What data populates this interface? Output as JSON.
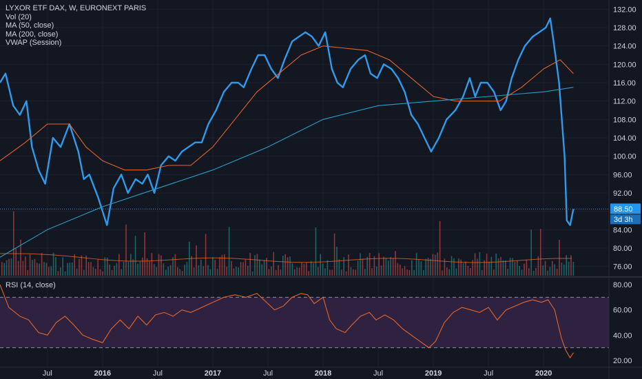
{
  "legend": {
    "symbol": "LYXOR ETF DAX, W, EURONEXT PARIS",
    "vol": "Vol (20)",
    "ma50": "MA (50, close)",
    "ma200": "MA (200, close)",
    "vwap": "VWAP (Session)",
    "rsi": "RSI (14, close)"
  },
  "price_tag": {
    "value": "88.50",
    "countdown": "3d 3h"
  },
  "colors": {
    "background": "#131722",
    "price_line": "#2f9bea",
    "ma50": "#e4652a",
    "ma200": "#2a9ec7",
    "rsi_line": "#e4652a",
    "rsi_band": "#2e2240",
    "vol_up": "#26a69a",
    "vol_down": "#ef5350",
    "tag_bg": "#2196f3",
    "grid": "#1e2230",
    "axis_text": "#d1d4dc"
  },
  "chart_data": [
    {
      "type": "line",
      "title": "LYXOR ETF DAX, W, EURONEXT PARIS",
      "x_ticks": [
        "Jul",
        "2016",
        "Jul",
        "2017",
        "Jul",
        "2018",
        "Jul",
        "2019",
        "Jul",
        "2020"
      ],
      "x_tick_values": [
        2015.5,
        2016.0,
        2016.5,
        2017.0,
        2017.5,
        2018.0,
        2018.5,
        2019.0,
        2019.5,
        2020.0
      ],
      "y_ticks": [
        "132.00",
        "128.00",
        "124.00",
        "120.00",
        "116.00",
        "112.00",
        "108.00",
        "104.00",
        "100.00",
        "96.00",
        "92.00",
        "88.00",
        "84.00",
        "80.00",
        "76.00"
      ],
      "ylim": [
        74,
        134
      ],
      "xlim": [
        2015.07,
        2020.33
      ],
      "grid": true,
      "series": [
        {
          "name": "Price",
          "points": [
            [
              2015.07,
              116
            ],
            [
              2015.12,
              118
            ],
            [
              2015.19,
              111
            ],
            [
              2015.25,
              109
            ],
            [
              2015.31,
              112
            ],
            [
              2015.36,
              102
            ],
            [
              2015.42,
              97
            ],
            [
              2015.48,
              94
            ],
            [
              2015.55,
              104
            ],
            [
              2015.62,
              102
            ],
            [
              2015.7,
              107
            ],
            [
              2015.78,
              101
            ],
            [
              2015.83,
              95
            ],
            [
              2015.88,
              96
            ],
            [
              2015.96,
              91
            ],
            [
              2016.04,
              85
            ],
            [
              2016.1,
              93
            ],
            [
              2016.17,
              96
            ],
            [
              2016.23,
              92
            ],
            [
              2016.3,
              95
            ],
            [
              2016.36,
              94
            ],
            [
              2016.41,
              96
            ],
            [
              2016.47,
              92
            ],
            [
              2016.53,
              98
            ],
            [
              2016.6,
              100
            ],
            [
              2016.66,
              99
            ],
            [
              2016.72,
              101
            ],
            [
              2016.78,
              102
            ],
            [
              2016.84,
              103
            ],
            [
              2016.9,
              103
            ],
            [
              2016.96,
              107
            ],
            [
              2017.03,
              110
            ],
            [
              2017.1,
              114
            ],
            [
              2017.17,
              116
            ],
            [
              2017.23,
              116
            ],
            [
              2017.28,
              115
            ],
            [
              2017.35,
              119
            ],
            [
              2017.41,
              122
            ],
            [
              2017.47,
              122
            ],
            [
              2017.53,
              119
            ],
            [
              2017.59,
              117
            ],
            [
              2017.65,
              121
            ],
            [
              2017.72,
              125
            ],
            [
              2017.78,
              126
            ],
            [
              2017.84,
              127
            ],
            [
              2017.9,
              126
            ],
            [
              2017.96,
              124
            ],
            [
              2018.02,
              127
            ],
            [
              2018.08,
              119
            ],
            [
              2018.13,
              116
            ],
            [
              2018.18,
              115
            ],
            [
              2018.25,
              119
            ],
            [
              2018.32,
              121
            ],
            [
              2018.38,
              122
            ],
            [
              2018.43,
              118
            ],
            [
              2018.49,
              117
            ],
            [
              2018.55,
              120
            ],
            [
              2018.62,
              119
            ],
            [
              2018.68,
              117
            ],
            [
              2018.74,
              114
            ],
            [
              2018.8,
              109
            ],
            [
              2018.86,
              107
            ],
            [
              2018.92,
              104
            ],
            [
              2018.98,
              101
            ],
            [
              2019.05,
              104
            ],
            [
              2019.12,
              108
            ],
            [
              2019.2,
              110
            ],
            [
              2019.27,
              113
            ],
            [
              2019.33,
              117
            ],
            [
              2019.38,
              113
            ],
            [
              2019.43,
              116
            ],
            [
              2019.49,
              116
            ],
            [
              2019.55,
              114
            ],
            [
              2019.61,
              110
            ],
            [
              2019.66,
              112
            ],
            [
              2019.71,
              117
            ],
            [
              2019.77,
              121
            ],
            [
              2019.83,
              124
            ],
            [
              2019.9,
              126
            ],
            [
              2019.96,
              127
            ],
            [
              2020.02,
              128
            ],
            [
              2020.06,
              130
            ],
            [
              2020.09,
              125
            ],
            [
              2020.14,
              116
            ],
            [
              2020.19,
              100
            ],
            [
              2020.21,
              86
            ],
            [
              2020.24,
              85
            ],
            [
              2020.27,
              88.5
            ]
          ]
        },
        {
          "name": "MA (50, close)",
          "points": [
            [
              2015.07,
              99
            ],
            [
              2015.3,
              103
            ],
            [
              2015.5,
              107
            ],
            [
              2015.7,
              107
            ],
            [
              2015.85,
              102
            ],
            [
              2016.0,
              99
            ],
            [
              2016.2,
              97
            ],
            [
              2016.4,
              97
            ],
            [
              2016.6,
              98
            ],
            [
              2016.8,
              98
            ],
            [
              2017.0,
              102
            ],
            [
              2017.2,
              108
            ],
            [
              2017.4,
              114
            ],
            [
              2017.6,
              118
            ],
            [
              2017.8,
              122
            ],
            [
              2018.0,
              124
            ],
            [
              2018.2,
              123.5
            ],
            [
              2018.4,
              123
            ],
            [
              2018.6,
              121
            ],
            [
              2018.8,
              117
            ],
            [
              2019.0,
              113
            ],
            [
              2019.2,
              112
            ],
            [
              2019.4,
              112
            ],
            [
              2019.6,
              112
            ],
            [
              2019.8,
              115
            ],
            [
              2020.0,
              119
            ],
            [
              2020.15,
              121
            ],
            [
              2020.27,
              118
            ]
          ]
        },
        {
          "name": "MA (200, close)",
          "points": [
            [
              2015.07,
              78
            ],
            [
              2015.5,
              84
            ],
            [
              2016.0,
              89
            ],
            [
              2016.5,
              93
            ],
            [
              2017.0,
              97
            ],
            [
              2017.5,
              102
            ],
            [
              2018.0,
              108
            ],
            [
              2018.5,
              111
            ],
            [
              2019.0,
              112
            ],
            [
              2019.5,
              113
            ],
            [
              2020.0,
              114
            ],
            [
              2020.27,
              115
            ]
          ]
        }
      ]
    },
    {
      "type": "bar",
      "title": "Vol (20)",
      "note": "volume bars drawn along the price panel bottom",
      "series": [
        {
          "name": "Vol (20)"
        }
      ]
    },
    {
      "type": "line",
      "title": "RSI (14, close)",
      "y_ticks": [
        "80.00",
        "60.00",
        "40.00",
        "20.00"
      ],
      "ylim": [
        15,
        85
      ],
      "bands": [
        30,
        70
      ],
      "series": [
        {
          "name": "RSI (14, close)",
          "points": [
            [
              2015.07,
              80
            ],
            [
              2015.15,
              62
            ],
            [
              2015.25,
              55
            ],
            [
              2015.33,
              52
            ],
            [
              2015.42,
              42
            ],
            [
              2015.5,
              40
            ],
            [
              2015.58,
              50
            ],
            [
              2015.66,
              55
            ],
            [
              2015.74,
              48
            ],
            [
              2015.82,
              40
            ],
            [
              2015.9,
              37
            ],
            [
              2016.0,
              34
            ],
            [
              2016.08,
              45
            ],
            [
              2016.16,
              52
            ],
            [
              2016.24,
              45
            ],
            [
              2016.32,
              55
            ],
            [
              2016.4,
              48
            ],
            [
              2016.48,
              56
            ],
            [
              2016.56,
              58
            ],
            [
              2016.64,
              55
            ],
            [
              2016.72,
              60
            ],
            [
              2016.8,
              58
            ],
            [
              2016.9,
              62
            ],
            [
              2017.0,
              66
            ],
            [
              2017.1,
              70
            ],
            [
              2017.2,
              72
            ],
            [
              2017.3,
              70
            ],
            [
              2017.4,
              73
            ],
            [
              2017.5,
              65
            ],
            [
              2017.56,
              60
            ],
            [
              2017.64,
              63
            ],
            [
              2017.72,
              70
            ],
            [
              2017.8,
              73
            ],
            [
              2017.86,
              72
            ],
            [
              2017.92,
              65
            ],
            [
              2018.0,
              70
            ],
            [
              2018.06,
              52
            ],
            [
              2018.12,
              45
            ],
            [
              2018.2,
              42
            ],
            [
              2018.26,
              48
            ],
            [
              2018.34,
              55
            ],
            [
              2018.42,
              58
            ],
            [
              2018.48,
              52
            ],
            [
              2018.56,
              56
            ],
            [
              2018.64,
              52
            ],
            [
              2018.72,
              45
            ],
            [
              2018.8,
              40
            ],
            [
              2018.88,
              35
            ],
            [
              2018.96,
              30
            ],
            [
              2019.02,
              35
            ],
            [
              2019.1,
              50
            ],
            [
              2019.18,
              58
            ],
            [
              2019.26,
              62
            ],
            [
              2019.34,
              60
            ],
            [
              2019.42,
              58
            ],
            [
              2019.5,
              62
            ],
            [
              2019.58,
              52
            ],
            [
              2019.66,
              60
            ],
            [
              2019.74,
              63
            ],
            [
              2019.82,
              66
            ],
            [
              2019.9,
              68
            ],
            [
              2019.98,
              66
            ],
            [
              2020.04,
              68
            ],
            [
              2020.1,
              60
            ],
            [
              2020.16,
              38
            ],
            [
              2020.2,
              28
            ],
            [
              2020.24,
              22
            ],
            [
              2020.27,
              26
            ]
          ]
        }
      ]
    }
  ]
}
